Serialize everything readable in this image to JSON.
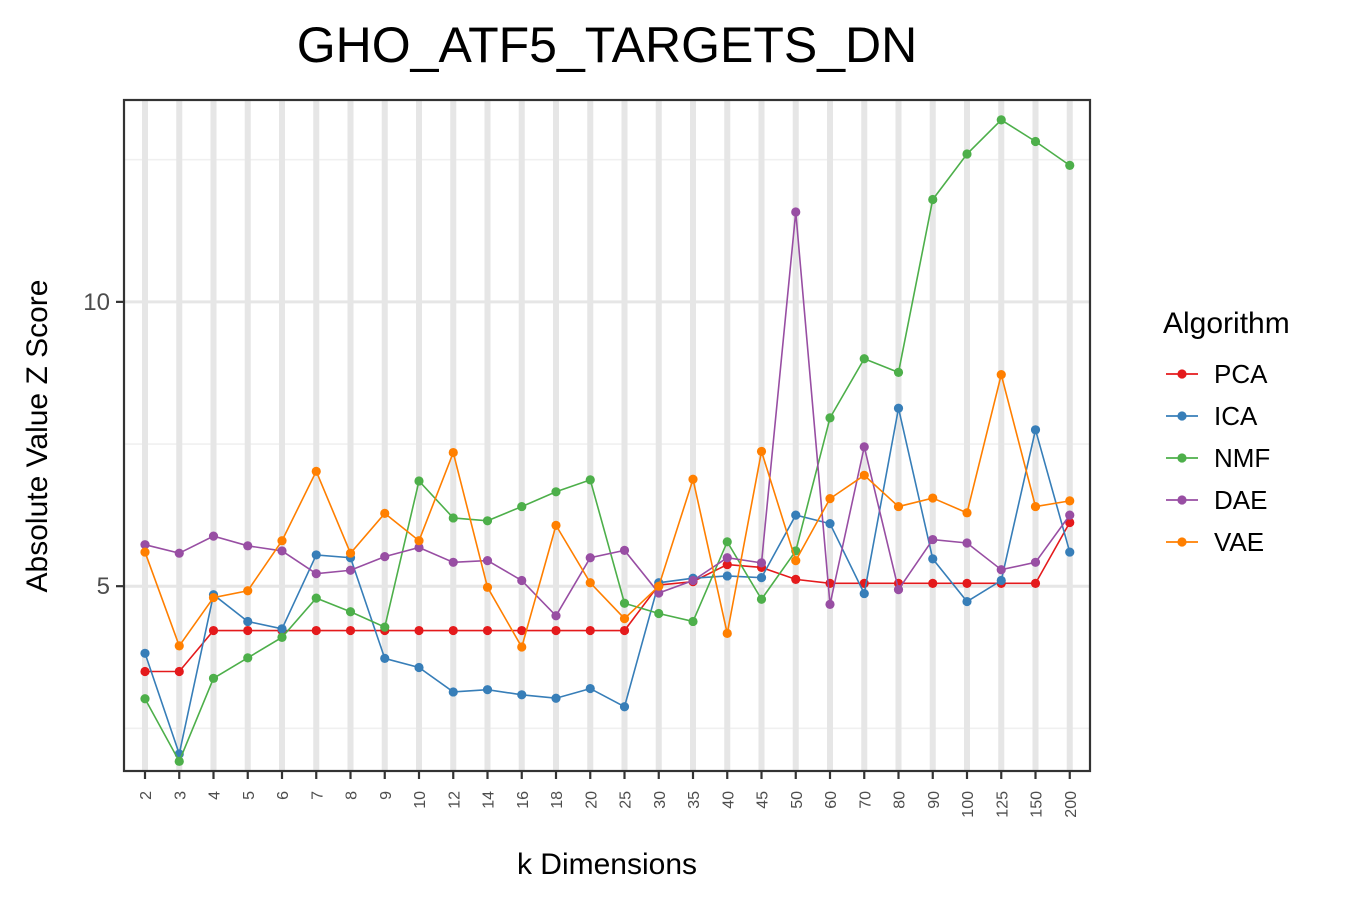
{
  "chart_data": {
    "type": "line",
    "title": "GHO_ATF5_TARGETS_DN",
    "xlabel": "k Dimensions",
    "ylabel": "Absolute Value Z Score",
    "categories": [
      "2",
      "3",
      "4",
      "5",
      "6",
      "7",
      "8",
      "9",
      "10",
      "12",
      "14",
      "16",
      "18",
      "20",
      "25",
      "30",
      "35",
      "40",
      "45",
      "50",
      "60",
      "70",
      "80",
      "90",
      "100",
      "125",
      "150",
      "200"
    ],
    "yticks": [
      5,
      10
    ],
    "ytick_labels": [
      "5",
      "10"
    ],
    "ylim": [
      1.75,
      13.55
    ],
    "grid": true,
    "legend": {
      "title": "Algorithm",
      "position": "right"
    },
    "series": [
      {
        "name": "PCA",
        "color": "#e41a1c",
        "values": [
          3.5,
          3.5,
          4.22,
          4.22,
          4.22,
          4.22,
          4.22,
          4.22,
          4.22,
          4.22,
          4.22,
          4.22,
          4.22,
          4.22,
          4.22,
          5.02,
          5.08,
          5.38,
          5.33,
          5.12,
          5.05,
          5.05,
          5.05,
          5.05,
          5.05,
          5.05,
          5.05,
          6.12
        ]
      },
      {
        "name": "ICA",
        "color": "#377eb8",
        "values": [
          3.82,
          2.05,
          4.85,
          4.38,
          4.25,
          5.55,
          5.5,
          3.73,
          3.57,
          3.14,
          3.18,
          3.09,
          3.03,
          3.2,
          2.88,
          5.06,
          5.14,
          5.18,
          5.15,
          6.25,
          6.1,
          4.87,
          8.13,
          5.48,
          4.73,
          5.1,
          7.75,
          5.6
        ]
      },
      {
        "name": "NMF",
        "color": "#4daf4a",
        "values": [
          3.02,
          1.92,
          3.38,
          3.74,
          4.1,
          4.79,
          4.55,
          4.28,
          6.85,
          6.2,
          6.15,
          6.4,
          6.66,
          6.87,
          4.7,
          4.52,
          4.38,
          5.78,
          4.77,
          5.62,
          7.96,
          9.0,
          8.76,
          11.8,
          12.6,
          13.2,
          12.82,
          12.4
        ]
      },
      {
        "name": "DAE",
        "color": "#984ea3",
        "values": [
          5.73,
          5.58,
          5.88,
          5.71,
          5.62,
          5.22,
          5.28,
          5.52,
          5.68,
          5.42,
          5.45,
          5.1,
          4.48,
          5.5,
          5.63,
          4.88,
          5.1,
          5.5,
          5.41,
          11.58,
          4.68,
          7.45,
          4.94,
          5.82,
          5.76,
          5.29,
          5.42,
          6.25
        ]
      },
      {
        "name": "VAE",
        "color": "#ff7f00",
        "values": [
          5.6,
          3.95,
          4.8,
          4.92,
          5.8,
          7.02,
          5.58,
          6.28,
          5.8,
          7.35,
          4.98,
          3.93,
          6.07,
          5.06,
          4.43,
          5.0,
          6.88,
          4.17,
          7.37,
          5.45,
          6.54,
          6.95,
          6.4,
          6.55,
          6.29,
          8.72,
          6.4,
          6.5
        ]
      }
    ]
  }
}
